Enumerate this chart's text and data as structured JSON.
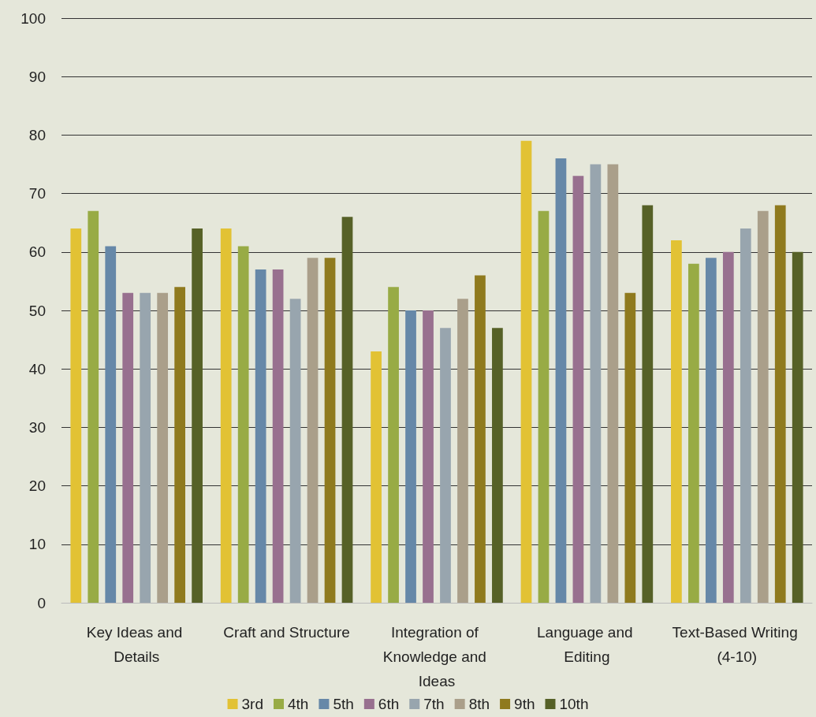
{
  "chart_data": {
    "type": "bar",
    "categories": [
      "Key Ideas and Details",
      "Craft and Structure",
      "Integration of Knowledge and Ideas",
      "Language and Editing",
      "Text-Based Writing (4-10)"
    ],
    "series": [
      {
        "name": "3rd",
        "color": "#e2c234",
        "values": [
          64,
          64,
          43,
          79,
          62
        ]
      },
      {
        "name": "4th",
        "color": "#98ab45",
        "values": [
          67,
          61,
          54,
          67,
          58
        ]
      },
      {
        "name": "5th",
        "color": "#6688a8",
        "values": [
          61,
          57,
          50,
          76,
          59
        ]
      },
      {
        "name": "6th",
        "color": "#98708f",
        "values": [
          53,
          57,
          50,
          73,
          60
        ]
      },
      {
        "name": "7th",
        "color": "#98a5ae",
        "values": [
          53,
          52,
          47,
          75,
          64
        ]
      },
      {
        "name": "8th",
        "color": "#aa9f8a",
        "values": [
          53,
          59,
          52,
          75,
          67
        ]
      },
      {
        "name": "9th",
        "color": "#8f7a1e",
        "values": [
          54,
          59,
          56,
          53,
          68
        ]
      },
      {
        "name": "10th",
        "color": "#566127",
        "values": [
          64,
          66,
          47,
          68,
          60
        ]
      }
    ],
    "ylim": [
      0,
      100
    ],
    "yticks": [
      0,
      10,
      20,
      30,
      40,
      50,
      60,
      70,
      80,
      90,
      100
    ],
    "grid": "y",
    "legend": "bottom"
  }
}
